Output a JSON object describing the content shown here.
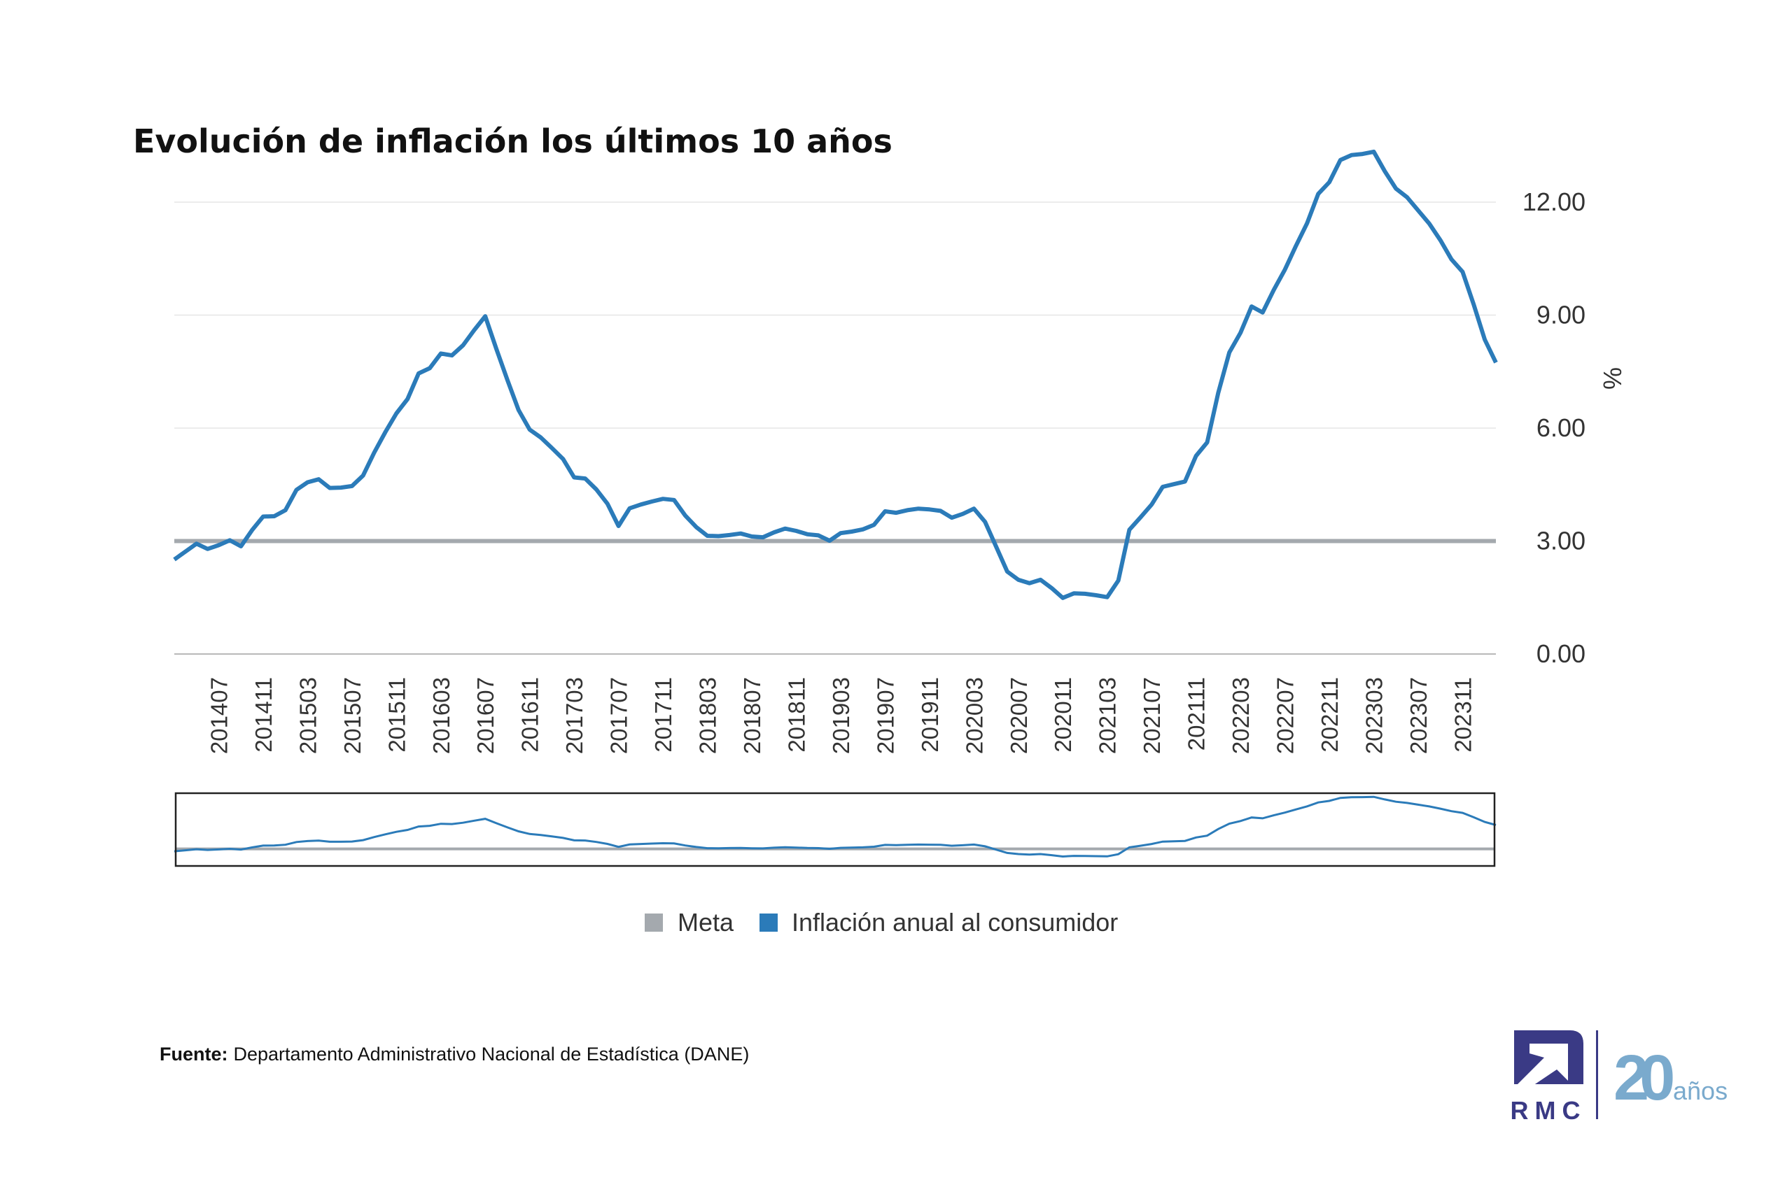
{
  "title": "Evolución de inflación los últimos 10 años",
  "footer": {
    "label": "Fuente:",
    "text": "Departamento Administrativo Nacional de Estadística (DANE)"
  },
  "logo": {
    "brand": "RMC",
    "anniversary_number": "20",
    "anniversary_word": "años",
    "brand_color": "#3a3a85",
    "anniversary_color": "#7aaacd"
  },
  "chart_data": {
    "type": "line",
    "title": "Evolución de inflación los últimos 10 años",
    "ylabel": "%",
    "ylim": [
      0,
      13.5
    ],
    "yticks": [
      "0.00",
      "3.00",
      "6.00",
      "9.00",
      "12.00"
    ],
    "ytick_values": [
      0,
      3,
      6,
      9,
      12
    ],
    "xtick_labels": [
      "201407",
      "201411",
      "201503",
      "201507",
      "201511",
      "201603",
      "201607",
      "201611",
      "201703",
      "201707",
      "201711",
      "201803",
      "201807",
      "201811",
      "201903",
      "201907",
      "201911",
      "202003",
      "202007",
      "202011",
      "202103",
      "202107",
      "202111",
      "202203",
      "202207",
      "202211",
      "202303",
      "202307",
      "202311"
    ],
    "grid": true,
    "legend_position": "bottom",
    "navigator": true,
    "x": [
      "201403",
      "201404",
      "201405",
      "201406",
      "201407",
      "201408",
      "201409",
      "201410",
      "201411",
      "201412",
      "201501",
      "201502",
      "201503",
      "201504",
      "201505",
      "201506",
      "201507",
      "201508",
      "201509",
      "201510",
      "201511",
      "201512",
      "201601",
      "201602",
      "201603",
      "201604",
      "201605",
      "201606",
      "201607",
      "201608",
      "201609",
      "201610",
      "201611",
      "201612",
      "201701",
      "201702",
      "201703",
      "201704",
      "201705",
      "201706",
      "201707",
      "201708",
      "201709",
      "201710",
      "201711",
      "201712",
      "201801",
      "201802",
      "201803",
      "201804",
      "201805",
      "201806",
      "201807",
      "201808",
      "201809",
      "201810",
      "201811",
      "201812",
      "201901",
      "201902",
      "201903",
      "201904",
      "201905",
      "201906",
      "201907",
      "201908",
      "201909",
      "201910",
      "201911",
      "201912",
      "202001",
      "202002",
      "202003",
      "202004",
      "202005",
      "202006",
      "202007",
      "202008",
      "202009",
      "202010",
      "202011",
      "202012",
      "202101",
      "202102",
      "202103",
      "202104",
      "202105",
      "202106",
      "202107",
      "202108",
      "202109",
      "202110",
      "202111",
      "202112",
      "202201",
      "202202",
      "202203",
      "202204",
      "202205",
      "202206",
      "202207",
      "202208",
      "202209",
      "202210",
      "202211",
      "202212",
      "202301",
      "202302",
      "202303",
      "202304",
      "202305",
      "202306",
      "202307",
      "202308",
      "202309",
      "202310",
      "202311",
      "202312",
      "202401",
      "202402"
    ],
    "series": [
      {
        "name": "Meta",
        "color": "#a4a9ae",
        "constant": 3.0
      },
      {
        "name": "Inflación anual al consumidor",
        "color": "#2b7bb9",
        "values": [
          2.51,
          2.72,
          2.93,
          2.79,
          2.89,
          3.02,
          2.86,
          3.29,
          3.65,
          3.66,
          3.82,
          4.36,
          4.56,
          4.64,
          4.41,
          4.42,
          4.46,
          4.74,
          5.35,
          5.89,
          6.39,
          6.77,
          7.45,
          7.59,
          7.98,
          7.93,
          8.2,
          8.6,
          8.97,
          8.1,
          7.27,
          6.48,
          5.96,
          5.75,
          5.47,
          5.18,
          4.69,
          4.66,
          4.37,
          3.99,
          3.4,
          3.87,
          3.97,
          4.05,
          4.12,
          4.09,
          3.68,
          3.37,
          3.14,
          3.13,
          3.16,
          3.2,
          3.12,
          3.1,
          3.23,
          3.33,
          3.27,
          3.18,
          3.15,
          3.01,
          3.21,
          3.25,
          3.31,
          3.43,
          3.79,
          3.75,
          3.82,
          3.86,
          3.84,
          3.8,
          3.62,
          3.72,
          3.86,
          3.51,
          2.85,
          2.19,
          1.97,
          1.88,
          1.97,
          1.75,
          1.49,
          1.61,
          1.6,
          1.56,
          1.51,
          1.95,
          3.3,
          3.63,
          3.97,
          4.44,
          4.51,
          4.58,
          5.26,
          5.62,
          6.94,
          8.01,
          8.53,
          9.23,
          9.07,
          9.67,
          10.21,
          10.84,
          11.44,
          12.22,
          12.53,
          13.12,
          13.25,
          13.28,
          13.34,
          12.82,
          12.36,
          12.13,
          11.78,
          11.43,
          10.99,
          10.48,
          10.15,
          9.28,
          8.35,
          7.74
        ]
      }
    ]
  }
}
